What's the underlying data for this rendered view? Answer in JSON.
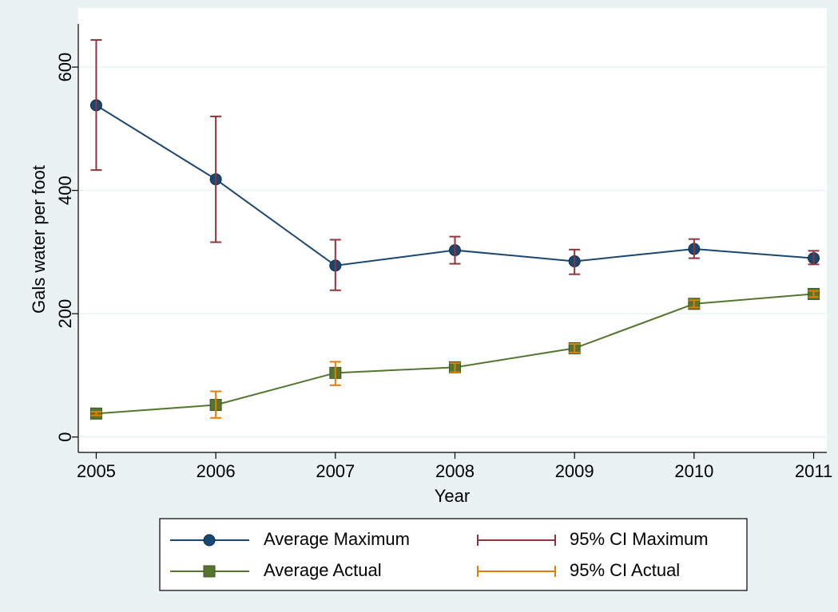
{
  "chart_data": {
    "type": "line",
    "x_label": "Year",
    "y_label": "Gals water per foot",
    "x": [
      2005,
      2006,
      2007,
      2008,
      2009,
      2010,
      2011
    ],
    "xlim": [
      2004.85,
      2011.11
    ],
    "xticks": [
      2005,
      2006,
      2007,
      2008,
      2009,
      2010,
      2011
    ],
    "ylim": [
      -25,
      670
    ],
    "yticks": [
      0,
      200,
      400,
      600
    ],
    "grid": true,
    "series": [
      {
        "name": "Average Maximum",
        "color": "#1a476f",
        "marker": "circle",
        "values": [
          538,
          418,
          278,
          303,
          285,
          305,
          290
        ]
      },
      {
        "name": "Average Actual",
        "color": "#55752f",
        "marker": "square",
        "values": [
          38,
          52,
          104,
          113,
          144,
          216,
          232
        ]
      }
    ],
    "intervals": [
      {
        "name": "95% CI Maximum",
        "color": "#90353b",
        "low": [
          433,
          316,
          238,
          281,
          264,
          290,
          280
        ],
        "high": [
          644,
          520,
          320,
          325,
          304,
          321,
          302
        ]
      },
      {
        "name": "95% CI Actual",
        "color": "#e37e00",
        "low": [
          35,
          31,
          84,
          105,
          137,
          210,
          227
        ],
        "high": [
          41,
          74,
          122,
          120,
          151,
          222,
          237
        ]
      }
    ]
  }
}
